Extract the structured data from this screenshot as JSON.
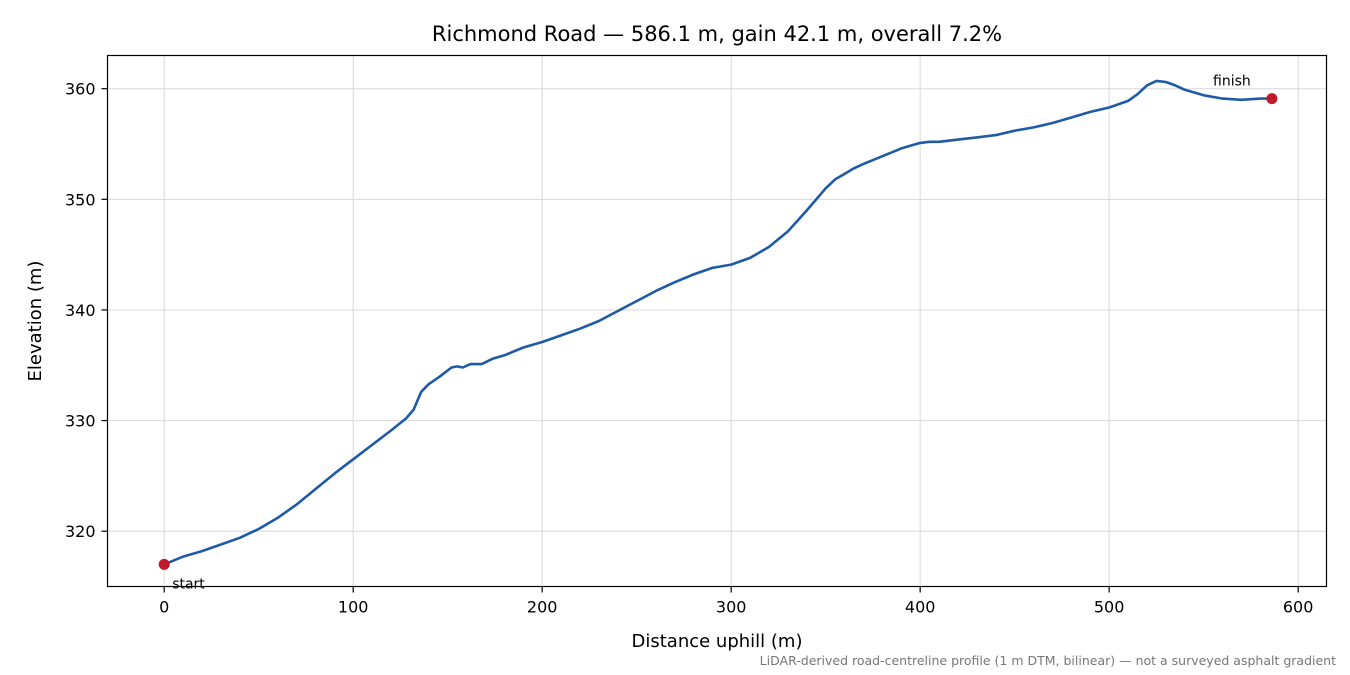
{
  "chart_data": {
    "type": "line",
    "title": "Richmond Road — 586.1 m, gain 42.1 m, overall 7.2%",
    "xlabel": "Distance uphill (m)",
    "ylabel": "Elevation (m)",
    "xlim": [
      -30,
      615
    ],
    "ylim": [
      315,
      363
    ],
    "x_ticks": [
      0,
      100,
      200,
      300,
      400,
      500,
      600
    ],
    "y_ticks": [
      320,
      330,
      340,
      350,
      360
    ],
    "grid": true,
    "line_color": "#1f5aa6",
    "marker_color": "#c0192c",
    "footnote": "LiDAR-derived road-centreline profile (1 m DTM, bilinear) — not a surveyed asphalt gradient",
    "series": [
      {
        "x": [
          0,
          10,
          20,
          30,
          40,
          50,
          60,
          70,
          80,
          90,
          100,
          110,
          120,
          128,
          132,
          136,
          140,
          146,
          152,
          155,
          158,
          162,
          168,
          174,
          180,
          190,
          200,
          210,
          220,
          230,
          240,
          250,
          260,
          270,
          280,
          290,
          300,
          310,
          320,
          330,
          340,
          350,
          355,
          360,
          365,
          370,
          380,
          390,
          400,
          405,
          410,
          420,
          430,
          440,
          450,
          460,
          470,
          480,
          490,
          500,
          510,
          515,
          520,
          525,
          530,
          535,
          540,
          550,
          560,
          570,
          580,
          586.1
        ],
        "y": [
          317.0,
          317.7,
          318.2,
          318.8,
          319.4,
          320.2,
          321.2,
          322.4,
          323.8,
          325.2,
          326.5,
          327.8,
          329.1,
          330.2,
          331.0,
          332.6,
          333.3,
          334.0,
          334.8,
          334.9,
          334.8,
          335.1,
          335.1,
          335.6,
          335.9,
          336.6,
          337.1,
          337.7,
          338.3,
          339.0,
          339.9,
          340.8,
          341.7,
          342.5,
          343.2,
          343.8,
          344.1,
          344.7,
          345.7,
          347.1,
          349.0,
          351.0,
          351.8,
          352.3,
          352.8,
          353.2,
          353.9,
          354.6,
          355.1,
          355.2,
          355.2,
          355.4,
          355.6,
          355.8,
          356.2,
          356.5,
          356.9,
          357.4,
          357.9,
          358.3,
          358.9,
          359.5,
          360.3,
          360.7,
          360.6,
          360.3,
          359.9,
          359.4,
          359.1,
          359.0,
          359.1,
          359.1
        ]
      }
    ],
    "annotations": [
      {
        "text": "start",
        "x": 0,
        "y": 317.0
      },
      {
        "text": "finish",
        "x": 586.1,
        "y": 359.1
      }
    ]
  }
}
